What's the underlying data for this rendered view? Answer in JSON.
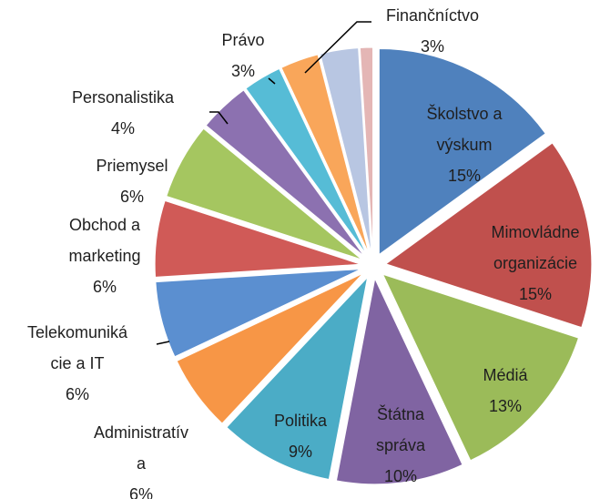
{
  "chart_data": {
    "type": "pie",
    "categories": [
      [
        "Školstvo a",
        "výskum"
      ],
      [
        "Mimovládne",
        "organizácie"
      ],
      [
        "Médiá"
      ],
      [
        "Štátna",
        "správa"
      ],
      [
        "Politika"
      ],
      [
        "Administratív",
        "a"
      ],
      [
        "Telekomuniká",
        "cie a IT"
      ],
      [
        "Obchod a",
        "marketing"
      ],
      [
        "Priemysel"
      ],
      [
        "Personalistika"
      ],
      [
        "Právo"
      ],
      [
        "Finančníctvo"
      ],
      null,
      null
    ],
    "values": [
      15,
      15,
      13,
      10,
      9,
      6,
      6,
      6,
      6,
      4,
      3,
      3,
      3,
      1
    ],
    "value_labels": [
      "15%",
      "15%",
      "13%",
      "10%",
      "9%",
      "6%",
      "6%",
      "6%",
      "6%",
      "4%",
      "3%",
      "3%",
      null,
      null
    ],
    "colors": [
      "#4f81bd",
      "#c0504d",
      "#9bbb59",
      "#8064a2",
      "#4bacc6",
      "#f79646",
      "#5b8fd0",
      "#d05a57",
      "#a5c660",
      "#8c71b0",
      "#56bcd6",
      "#f9a65a",
      "#b8c6e2",
      "#e4b6b5"
    ]
  }
}
